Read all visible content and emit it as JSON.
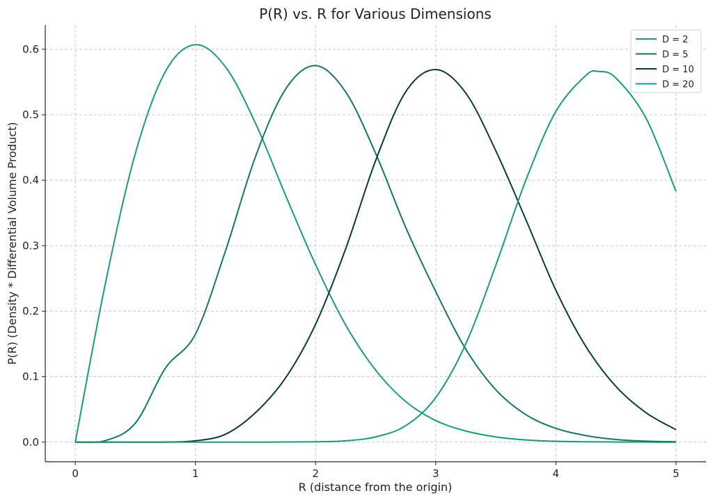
{
  "chart_data": {
    "type": "line",
    "title": "P(R) vs. R for Various Dimensions",
    "xlabel": "R (distance from the origin)",
    "ylabel": "P(R) (Density * Differential Volume Product)",
    "xlim": [
      -0.25,
      5.25
    ],
    "ylim": [
      -0.03,
      0.637
    ],
    "xticks": [
      0,
      1,
      2,
      3,
      4,
      5
    ],
    "yticks": [
      0.0,
      0.1,
      0.2,
      0.3,
      0.4,
      0.5,
      0.6
    ],
    "xtick_labels": [
      "0",
      "1",
      "2",
      "3",
      "4",
      "5"
    ],
    "ytick_labels": [
      "0.0",
      "0.1",
      "0.2",
      "0.3",
      "0.4",
      "0.5",
      "0.6"
    ],
    "grid": true,
    "legend_position": "top-right",
    "series": [
      {
        "name": "D = 2",
        "color": "#149c7c",
        "x": [
          0,
          0.25,
          0.5,
          0.75,
          1.0,
          1.25,
          1.5,
          1.75,
          2.0,
          2.25,
          2.5,
          2.75,
          3.0,
          3.25,
          3.5,
          3.75,
          4.0,
          4.25,
          4.5,
          4.75,
          5.0
        ],
        "y": [
          0,
          0.242,
          0.441,
          0.566,
          0.607,
          0.573,
          0.487,
          0.377,
          0.271,
          0.179,
          0.11,
          0.062,
          0.033,
          0.017,
          0.008,
          0.0033,
          0.0013,
          0.0005,
          0.0002,
          0.0001,
          0.0
        ]
      },
      {
        "name": "D = 5",
        "color": "#0f7a5c",
        "x": [
          0,
          0.25,
          0.5,
          0.75,
          1.0,
          1.25,
          1.5,
          1.75,
          2.0,
          2.25,
          2.5,
          2.75,
          3.0,
          3.25,
          3.5,
          3.75,
          4.0,
          4.25,
          4.5,
          4.75,
          5.0
        ],
        "y": [
          0,
          0.0023,
          0.029,
          0.113,
          0.165,
          0.292,
          0.436,
          0.539,
          0.575,
          0.535,
          0.441,
          0.328,
          0.23,
          0.142,
          0.08,
          0.042,
          0.021,
          0.01,
          0.004,
          0.0015,
          0.0005
        ]
      },
      {
        "name": "D = 10",
        "color": "#073d2c",
        "x": [
          0,
          0.25,
          0.5,
          0.75,
          1.0,
          1.25,
          1.5,
          1.75,
          2.0,
          2.25,
          2.5,
          2.75,
          3.0,
          3.25,
          3.5,
          3.75,
          4.0,
          4.25,
          4.5,
          4.75,
          5.0
        ],
        "y": [
          0,
          0,
          0,
          0.0001,
          0.002,
          0.012,
          0.045,
          0.098,
          0.18,
          0.295,
          0.43,
          0.535,
          0.569,
          0.533,
          0.445,
          0.34,
          0.232,
          0.146,
          0.085,
          0.045,
          0.019
        ]
      },
      {
        "name": "D = 20",
        "color": "#149c7c",
        "x": [
          0,
          0.5,
          1.0,
          1.5,
          2.0,
          2.25,
          2.5,
          2.75,
          3.0,
          3.25,
          3.5,
          3.75,
          4.0,
          4.25,
          4.36,
          4.5,
          4.75,
          5.0
        ],
        "y": [
          0,
          0,
          0,
          0,
          0.0005,
          0.002,
          0.008,
          0.025,
          0.068,
          0.15,
          0.27,
          0.4,
          0.505,
          0.56,
          0.566,
          0.556,
          0.495,
          0.383
        ]
      }
    ]
  }
}
